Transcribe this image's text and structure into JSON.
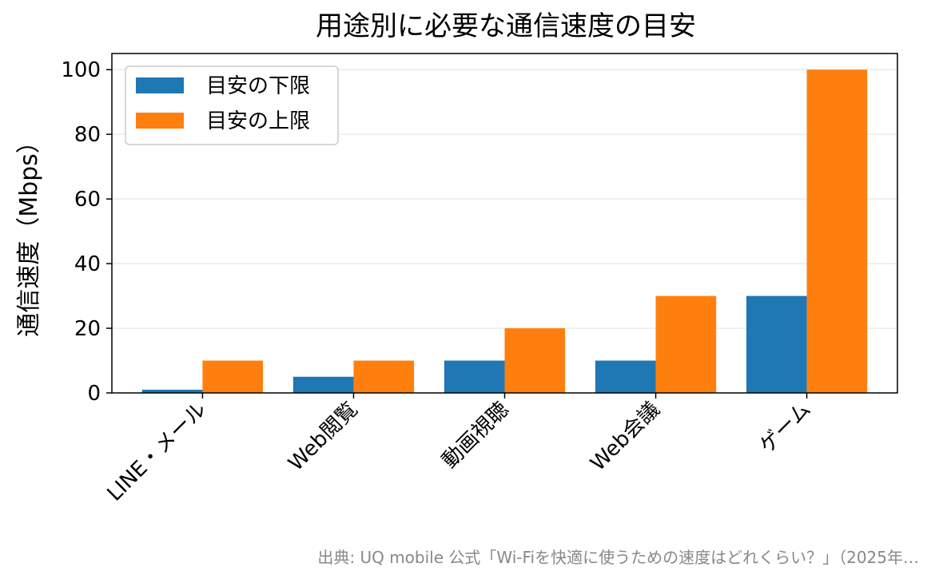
{
  "chart_data": {
    "type": "bar",
    "title": "用途別に必要な通信速度の目安",
    "xlabel": "",
    "ylabel": "通信速度（Mbps）",
    "categories": [
      "LINE・メール",
      "Web閲覧",
      "動画視聴",
      "Web会議",
      "ゲーム"
    ],
    "series": [
      {
        "name": "目安の下限",
        "values": [
          1,
          5,
          10,
          10,
          30
        ],
        "color": "#1f77b4"
      },
      {
        "name": "目安の上限",
        "values": [
          10,
          10,
          20,
          30,
          100
        ],
        "color": "#ff7f0e"
      }
    ],
    "ylim": [
      0,
      105
    ],
    "yticks": [
      0,
      20,
      40,
      60,
      80,
      100
    ],
    "grid": "horizontal",
    "legend": "top-left"
  },
  "source_note": "出典: UQ mobile 公式「Wi-Fiを快適に使うための速度はどれくらい？」（2025年…"
}
